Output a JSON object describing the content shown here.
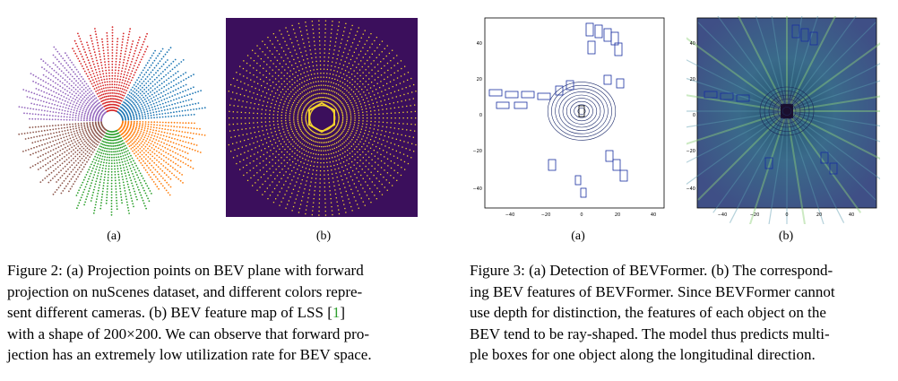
{
  "figure2": {
    "sub_a": "(a)",
    "sub_b": "(b)",
    "caption_lines": [
      "Figure 2: (a) Projection points on BEV plane with forward",
      "projection on nuScenes dataset, and different colors repre-",
      "sent different cameras. (b) BEV feature map of LSS [",
      "with a shape of 200×200. We can observe that forward pro-",
      "jection has an extremely low utilization rate for BEV space."
    ],
    "citation": "1",
    "citation_close": "]",
    "camera_colors": [
      "#d62728",
      "#1f77b4",
      "#ff7f0e",
      "#2ca02c",
      "#8c564b",
      "#9467bd"
    ],
    "feature_map_bg": "#3b0f5c",
    "feature_map_point": "#f2d22e"
  },
  "figure3": {
    "sub_a": "(a)",
    "sub_b": "(b)",
    "caption_lines": [
      "Figure 3: (a) Detection of BEVFormer. (b) The correspond-",
      "ing BEV features of BEVFormer. Since BEVFormer cannot",
      "use depth for distinction, the features of each object on the",
      "BEV tend to be ray-shaped. The model thus predicts multi-",
      "ple boxes for one object along the longitudinal direction."
    ],
    "plot_a": {
      "y_ticks": [
        "40",
        "20",
        "0",
        "−20",
        "−40"
      ],
      "x_ticks": [
        "−40",
        "−20",
        "0",
        "20",
        "40"
      ]
    },
    "plot_b": {
      "y_ticks": [
        "40",
        "20",
        "0",
        "−20",
        "−40"
      ],
      "x_ticks": [
        "−40",
        "−20",
        "0",
        "20",
        "40"
      ]
    },
    "box_color": "#1a2fa0",
    "heatmap_bg": "#3d5a8c"
  }
}
